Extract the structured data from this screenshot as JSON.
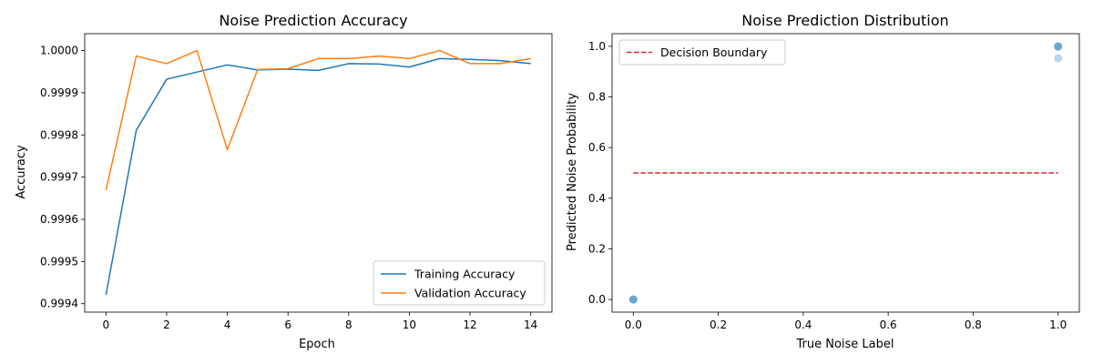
{
  "chart_data": [
    {
      "type": "line",
      "title": "Noise Prediction Accuracy",
      "xlabel": "Epoch",
      "ylabel": "Accuracy",
      "xlim": [
        -0.7,
        14.7
      ],
      "ylim": [
        0.99938,
        1.00004
      ],
      "xticks": [
        0,
        2,
        4,
        6,
        8,
        10,
        12,
        14
      ],
      "xtick_labels": [
        "0",
        "2",
        "4",
        "6",
        "8",
        "10",
        "12",
        "14"
      ],
      "yticks": [
        0.9994,
        0.9995,
        0.9996,
        0.9997,
        0.9998,
        0.9999,
        1.0
      ],
      "ytick_labels": [
        "0.9994",
        "0.9995",
        "0.9996",
        "0.9997",
        "0.9998",
        "0.9999",
        "1.0000"
      ],
      "grid": false,
      "legend_position": "lower-right",
      "x": [
        0,
        1,
        2,
        3,
        4,
        5,
        6,
        7,
        8,
        9,
        10,
        11,
        12,
        13,
        14
      ],
      "series": [
        {
          "name": "Training Accuracy",
          "color": "#1f77b4",
          "values": [
            0.999421,
            0.999811,
            0.999932,
            0.999949,
            0.999966,
            0.999954,
            0.999956,
            0.999953,
            0.999969,
            0.999968,
            0.999961,
            0.999981,
            0.999979,
            0.999976,
            0.999969
          ]
        },
        {
          "name": "Validation Accuracy",
          "color": "#ff7f0e",
          "values": [
            0.999669,
            0.999987,
            0.999969,
            1.0,
            0.999765,
            0.999955,
            0.999957,
            0.999981,
            0.999981,
            0.999987,
            0.999981,
            1.0,
            0.999969,
            0.999969,
            0.999981
          ]
        }
      ]
    },
    {
      "type": "scatter",
      "title": "Noise Prediction Distribution",
      "xlabel": "True Noise Label",
      "ylabel": "Predicted Noise Probability",
      "xlim": [
        -0.05,
        1.05
      ],
      "ylim": [
        -0.05,
        1.05
      ],
      "xticks": [
        0.0,
        0.2,
        0.4,
        0.6,
        0.8,
        1.0
      ],
      "xtick_labels": [
        "0.0",
        "0.2",
        "0.4",
        "0.6",
        "0.8",
        "1.0"
      ],
      "yticks": [
        0.0,
        0.2,
        0.4,
        0.6,
        0.8,
        1.0
      ],
      "ytick_labels": [
        "0.0",
        "0.2",
        "0.4",
        "0.6",
        "0.8",
        "1.0"
      ],
      "grid": false,
      "legend_position": "top-left",
      "points": {
        "color": "#1f77b4",
        "x": [
          0,
          0,
          0,
          1,
          1,
          1,
          1
        ],
        "y": [
          0.0,
          0.0,
          0.0,
          1.0,
          1.0,
          0.998,
          0.953
        ],
        "alpha": 0.3
      },
      "threshold": {
        "name": "Decision Boundary",
        "color": "#d62728",
        "style": "dashed",
        "x": [
          0,
          1
        ],
        "y": [
          0.5,
          0.5
        ]
      }
    }
  ]
}
